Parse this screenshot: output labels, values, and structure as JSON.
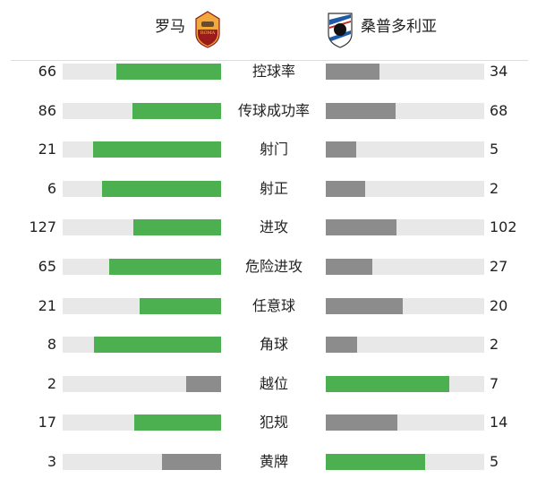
{
  "header": {
    "home_team": "罗马",
    "away_team": "桑普多利亚",
    "home_logo_icon": "as-roma-crest-icon",
    "away_logo_icon": "sampdoria-crest-icon"
  },
  "colors": {
    "leader": "#4caf50",
    "trailer": "#8c8c8c",
    "track": "#e8e8e8"
  },
  "stats": [
    {
      "label": "控球率",
      "home": 66,
      "away": 34
    },
    {
      "label": "传球成功率",
      "home": 86,
      "away": 68
    },
    {
      "label": "射门",
      "home": 21,
      "away": 5
    },
    {
      "label": "射正",
      "home": 6,
      "away": 2
    },
    {
      "label": "进攻",
      "home": 127,
      "away": 102
    },
    {
      "label": "危险进攻",
      "home": 65,
      "away": 27
    },
    {
      "label": "任意球",
      "home": 21,
      "away": 20
    },
    {
      "label": "角球",
      "home": 8,
      "away": 2
    },
    {
      "label": "越位",
      "home": 2,
      "away": 7
    },
    {
      "label": "犯规",
      "home": 17,
      "away": 14
    },
    {
      "label": "黄牌",
      "home": 3,
      "away": 5
    }
  ]
}
